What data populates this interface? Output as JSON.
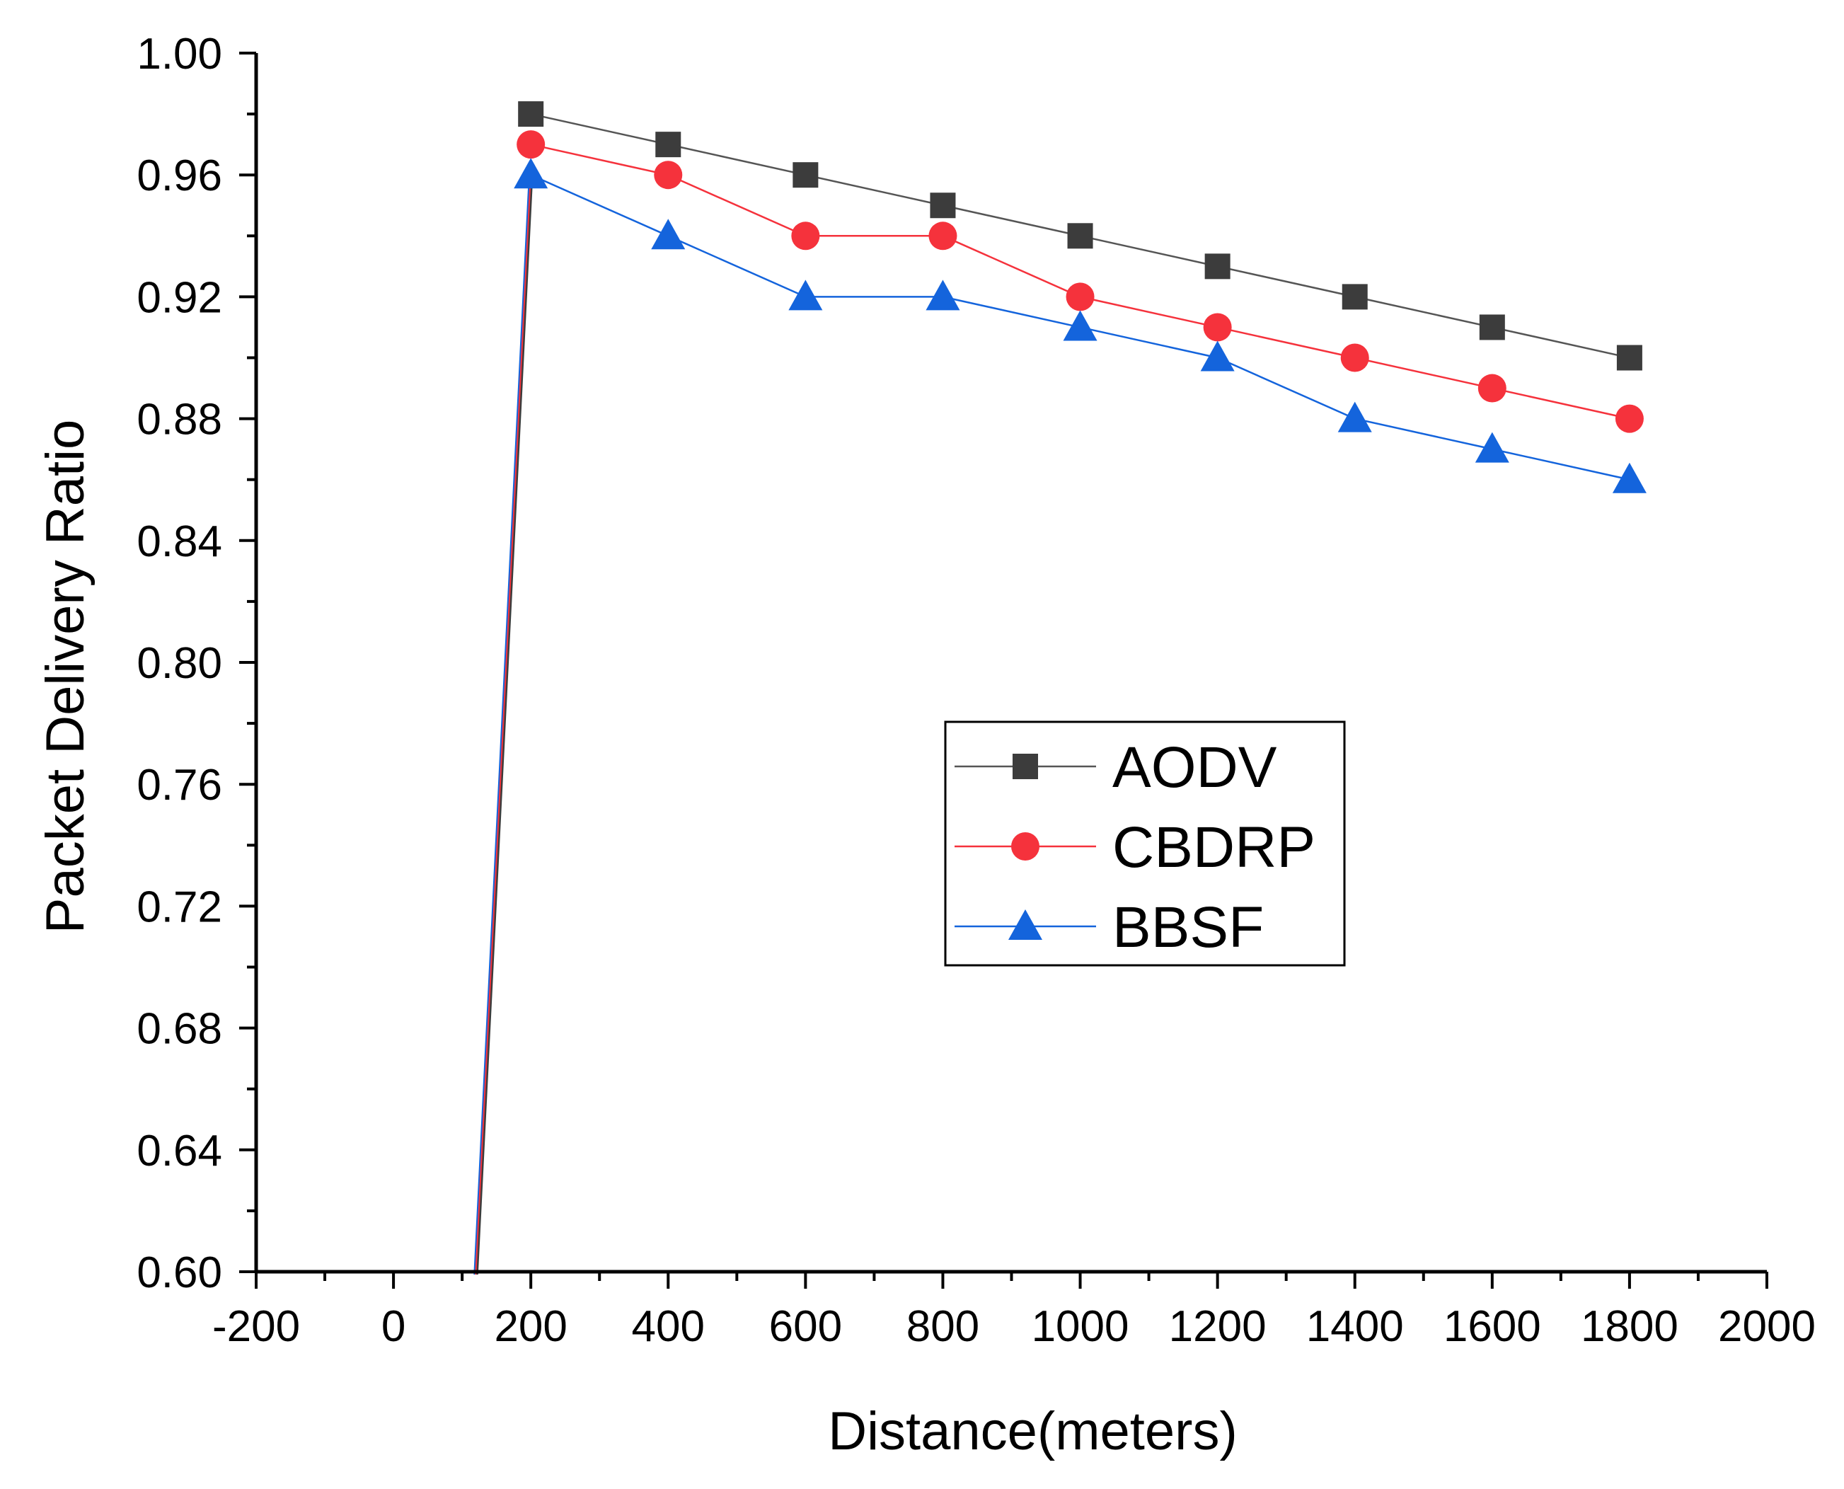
{
  "chart_data": {
    "type": "line",
    "title": "",
    "xlabel": "Distance(meters)",
    "ylabel": "Packet Delivery Ratio",
    "xlim": [
      -200,
      2000
    ],
    "ylim": [
      0.6,
      1.0
    ],
    "x_ticks": [
      -200,
      0,
      200,
      400,
      600,
      800,
      1000,
      1200,
      1400,
      1600,
      1800,
      2000
    ],
    "x_tick_labels": [
      "-200",
      "0",
      "200",
      "400",
      "600",
      "800",
      "1000",
      "1200",
      "1400",
      "1600",
      "1800",
      "2000"
    ],
    "y_ticks": [
      0.6,
      0.64,
      0.68,
      0.72,
      0.76,
      0.8,
      0.84,
      0.88,
      0.92,
      0.96,
      1.0
    ],
    "y_tick_labels": [
      "0.60",
      "0.64",
      "0.68",
      "0.72",
      "0.76",
      "0.80",
      "0.84",
      "0.88",
      "0.92",
      "0.96",
      "1.00"
    ],
    "grid": false,
    "legend_position": "center-right",
    "series": [
      {
        "name": "AODV",
        "color": "#3c3c3c",
        "line_color": "#555555",
        "marker": "square",
        "x": [
          200,
          400,
          600,
          800,
          1000,
          1200,
          1400,
          1600,
          1800
        ],
        "values": [
          0.98,
          0.97,
          0.96,
          0.95,
          0.94,
          0.93,
          0.92,
          0.91,
          0.9
        ]
      },
      {
        "name": "CBDRP",
        "color": "#f5323c",
        "line_color": "#f5323c",
        "marker": "circle",
        "x": [
          200,
          400,
          600,
          800,
          1000,
          1200,
          1400,
          1600,
          1800
        ],
        "values": [
          0.97,
          0.96,
          0.94,
          0.94,
          0.92,
          0.91,
          0.9,
          0.89,
          0.88
        ]
      },
      {
        "name": "BBSF",
        "color": "#1464dc",
        "line_color": "#1464dc",
        "marker": "triangle",
        "x": [
          200,
          400,
          600,
          800,
          1000,
          1200,
          1400,
          1600,
          1800
        ],
        "values": [
          0.96,
          0.94,
          0.92,
          0.92,
          0.91,
          0.9,
          0.88,
          0.87,
          0.86
        ]
      }
    ],
    "annotation_segment": {
      "from": [
        120,
        0.6
      ],
      "to": [
        200,
        0.96
      ],
      "colors": [
        "#1464dc",
        "#f5323c",
        "#3c3c3c"
      ]
    }
  }
}
